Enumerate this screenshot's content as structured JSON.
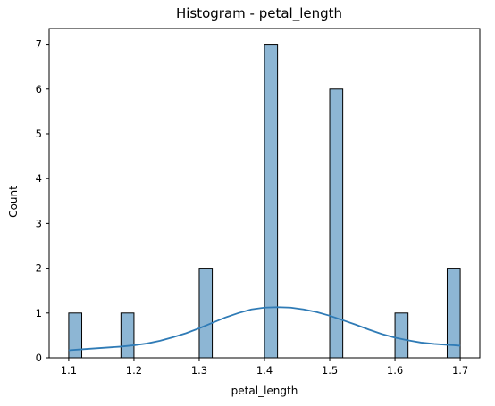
{
  "chart_data": {
    "type": "bar",
    "title": "Histogram - petal_length",
    "xlabel": "petal_length",
    "ylabel": "Count",
    "xlim": [
      1.07,
      1.73
    ],
    "ylim": [
      0,
      7.35
    ],
    "x_ticks": [
      1.1,
      1.2,
      1.3,
      1.4,
      1.5,
      1.6,
      1.7
    ],
    "x_tick_labels": [
      "1.1",
      "1.2",
      "1.3",
      "1.4",
      "1.5",
      "1.6",
      "1.7"
    ],
    "y_ticks": [
      0,
      1,
      2,
      3,
      4,
      5,
      6,
      7
    ],
    "y_tick_labels": [
      "0",
      "1",
      "2",
      "3",
      "4",
      "5",
      "6",
      "7"
    ],
    "bin_width": 0.02,
    "bins": [
      {
        "start": 1.1,
        "count": 1
      },
      {
        "start": 1.18,
        "count": 1
      },
      {
        "start": 1.3,
        "count": 2
      },
      {
        "start": 1.4,
        "count": 7
      },
      {
        "start": 1.5,
        "count": 6
      },
      {
        "start": 1.6,
        "count": 1
      },
      {
        "start": 1.68,
        "count": 2
      }
    ],
    "kde": {
      "x": [
        1.1,
        1.12,
        1.14,
        1.16,
        1.18,
        1.2,
        1.22,
        1.24,
        1.26,
        1.28,
        1.3,
        1.32,
        1.34,
        1.36,
        1.38,
        1.4,
        1.42,
        1.44,
        1.46,
        1.48,
        1.5,
        1.52,
        1.54,
        1.56,
        1.58,
        1.6,
        1.62,
        1.64,
        1.66,
        1.68,
        1.7
      ],
      "y": [
        0.17,
        0.19,
        0.21,
        0.23,
        0.25,
        0.28,
        0.32,
        0.38,
        0.46,
        0.55,
        0.66,
        0.78,
        0.9,
        1.0,
        1.08,
        1.12,
        1.13,
        1.12,
        1.08,
        1.02,
        0.94,
        0.84,
        0.74,
        0.63,
        0.53,
        0.45,
        0.39,
        0.34,
        0.31,
        0.29,
        0.27
      ]
    },
    "grid": false,
    "legend": "none",
    "colors": {
      "bar_fill": "#8db6d4",
      "bar_edge": "#000000",
      "kde_line": "#2f7bb6",
      "axis": "#000000"
    }
  }
}
